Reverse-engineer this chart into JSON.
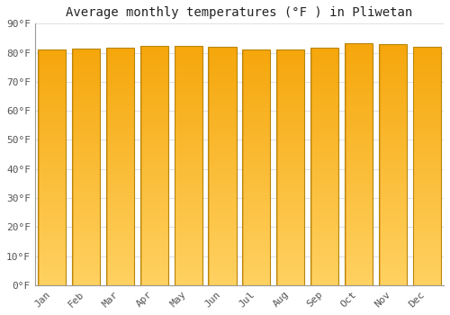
{
  "title": "Average monthly temperatures (°F ) in Pliwetan",
  "months": [
    "Jan",
    "Feb",
    "Mar",
    "Apr",
    "May",
    "Jun",
    "Jul",
    "Aug",
    "Sep",
    "Oct",
    "Nov",
    "Dec"
  ],
  "values": [
    81.1,
    81.3,
    81.7,
    82.2,
    82.4,
    81.9,
    81.1,
    81.1,
    81.8,
    83.3,
    83.1,
    81.9
  ],
  "bar_color_top": "#F5A500",
  "bar_color_bottom": "#FFD060",
  "bar_edge_color": "#B8860B",
  "bar_edge_width": 0.8,
  "ylim": [
    0,
    90
  ],
  "yticks": [
    0,
    10,
    20,
    30,
    40,
    50,
    60,
    70,
    80,
    90
  ],
  "ytick_labels": [
    "0°F",
    "10°F",
    "20°F",
    "30°F",
    "40°F",
    "50°F",
    "60°F",
    "70°F",
    "80°F",
    "90°F"
  ],
  "background_color": "#ffffff",
  "plot_background": "#ffffff",
  "grid_color": "#e0e0e8",
  "title_fontsize": 10,
  "tick_fontsize": 8,
  "font_family": "monospace",
  "bar_width": 0.82
}
